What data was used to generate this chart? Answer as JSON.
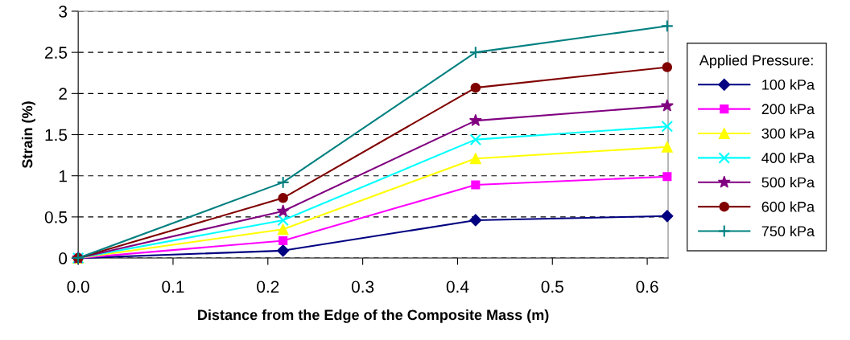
{
  "chart_data": {
    "type": "line",
    "xlabel": "Distance from the Edge of the Composite Mass (m)",
    "ylabel": "Strain (%)",
    "legend_title": "Applied Pressure:",
    "legend": "right",
    "grid": "y",
    "line_style": "solid",
    "x": [
      0,
      0.216,
      0.419,
      0.621
    ],
    "xlim": [
      0,
      0.622
    ],
    "xticks": [
      {
        "value": 0,
        "label": "0.0"
      },
      0.1,
      0.2,
      0.3,
      0.4,
      0.5,
      0.6
    ],
    "ylim": [
      0,
      3
    ],
    "yticks": [
      0,
      0.5,
      1,
      1.5,
      2,
      2.5,
      3
    ],
    "series": [
      {
        "name": "100 kPa",
        "color": "#000080",
        "marker": "diamond",
        "values": [
          0,
          0.09,
          0.46,
          0.51
        ]
      },
      {
        "name": "200 kPa",
        "color": "#ff00ff",
        "marker": "square",
        "values": [
          0,
          0.21,
          0.89,
          0.99
        ]
      },
      {
        "name": "300 kPa",
        "color": "#ffff00",
        "marker": "triangle",
        "values": [
          0,
          0.35,
          1.21,
          1.35
        ]
      },
      {
        "name": "400 kPa",
        "color": "#00ffff",
        "marker": "cross",
        "values": [
          0,
          0.46,
          1.44,
          1.6
        ]
      },
      {
        "name": "500 kPa",
        "color": "#800080",
        "marker": "star",
        "values": [
          0,
          0.57,
          1.67,
          1.85
        ]
      },
      {
        "name": "600 kPa",
        "color": "#800000",
        "marker": "circle",
        "values": [
          0,
          0.73,
          2.07,
          2.32
        ]
      },
      {
        "name": "750 kPa",
        "color": "#008080",
        "marker": "plus",
        "values": [
          0,
          0.92,
          2.5,
          2.82
        ]
      }
    ]
  }
}
